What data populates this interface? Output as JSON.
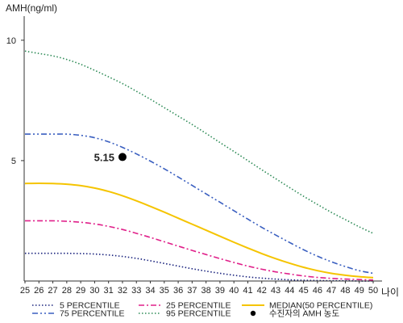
{
  "chart_data": {
    "type": "line",
    "ylabel": "AMH(ng/ml)",
    "xlabel": "나이",
    "xlim": [
      25,
      50
    ],
    "ylim": [
      0,
      11
    ],
    "x_ticks": [
      25,
      26,
      27,
      28,
      29,
      30,
      31,
      32,
      33,
      34,
      35,
      36,
      37,
      38,
      39,
      40,
      41,
      42,
      43,
      44,
      45,
      46,
      47,
      48,
      49,
      50
    ],
    "y_ticks": [
      5,
      10
    ],
    "grid": false,
    "legend_position": "bottom",
    "x": [
      25,
      26,
      27,
      28,
      29,
      30,
      31,
      32,
      33,
      34,
      35,
      36,
      37,
      38,
      39,
      40,
      41,
      42,
      43,
      44,
      45,
      46,
      47,
      48,
      49,
      50
    ],
    "series": [
      {
        "name": "5 PERCENTILE",
        "color": "#1a237e",
        "dash": "dotted",
        "values": [
          1.15,
          1.15,
          1.15,
          1.15,
          1.14,
          1.12,
          1.08,
          1.02,
          0.94,
          0.84,
          0.73,
          0.62,
          0.51,
          0.41,
          0.32,
          0.24,
          0.17,
          0.12,
          0.08,
          0.05,
          0.03,
          0.02,
          0.01,
          0.01,
          0.0,
          0.0
        ]
      },
      {
        "name": "25 PERCENTILE",
        "color": "#e0208a",
        "dash": "dashdot",
        "values": [
          2.5,
          2.5,
          2.5,
          2.48,
          2.44,
          2.37,
          2.27,
          2.14,
          1.98,
          1.81,
          1.63,
          1.45,
          1.27,
          1.1,
          0.93,
          0.77,
          0.62,
          0.49,
          0.38,
          0.29,
          0.21,
          0.15,
          0.11,
          0.08,
          0.06,
          0.04
        ]
      },
      {
        "name": "MEDIAN(50 PERCENTILE)",
        "color": "#f5c400",
        "dash": "solid",
        "values": [
          4.05,
          4.06,
          4.05,
          4.02,
          3.96,
          3.86,
          3.72,
          3.54,
          3.33,
          3.1,
          2.86,
          2.61,
          2.36,
          2.11,
          1.86,
          1.61,
          1.37,
          1.14,
          0.93,
          0.74,
          0.57,
          0.43,
          0.32,
          0.24,
          0.18,
          0.14
        ]
      },
      {
        "name": "75 PERCENTILE",
        "color": "#3a5fc0",
        "dash": "dashdotdot",
        "values": [
          6.1,
          6.1,
          6.1,
          6.1,
          6.05,
          5.95,
          5.78,
          5.55,
          5.28,
          4.98,
          4.66,
          4.32,
          3.97,
          3.62,
          3.27,
          2.92,
          2.57,
          2.23,
          1.91,
          1.6,
          1.3,
          1.03,
          0.8,
          0.6,
          0.43,
          0.32
        ]
      },
      {
        "name": "95 PERCENTILE",
        "color": "#2e8b57",
        "dash": "dotted",
        "values": [
          9.55,
          9.45,
          9.35,
          9.2,
          9.0,
          8.75,
          8.48,
          8.2,
          7.88,
          7.55,
          7.2,
          6.85,
          6.5,
          6.13,
          5.75,
          5.38,
          5.0,
          4.62,
          4.25,
          3.88,
          3.52,
          3.18,
          2.85,
          2.55,
          2.25,
          1.98
        ]
      }
    ],
    "points": [
      {
        "name": "수진자의 AMH 농도",
        "color": "#000000",
        "x": 32,
        "y": 5.15,
        "label": "5.15"
      }
    ]
  }
}
